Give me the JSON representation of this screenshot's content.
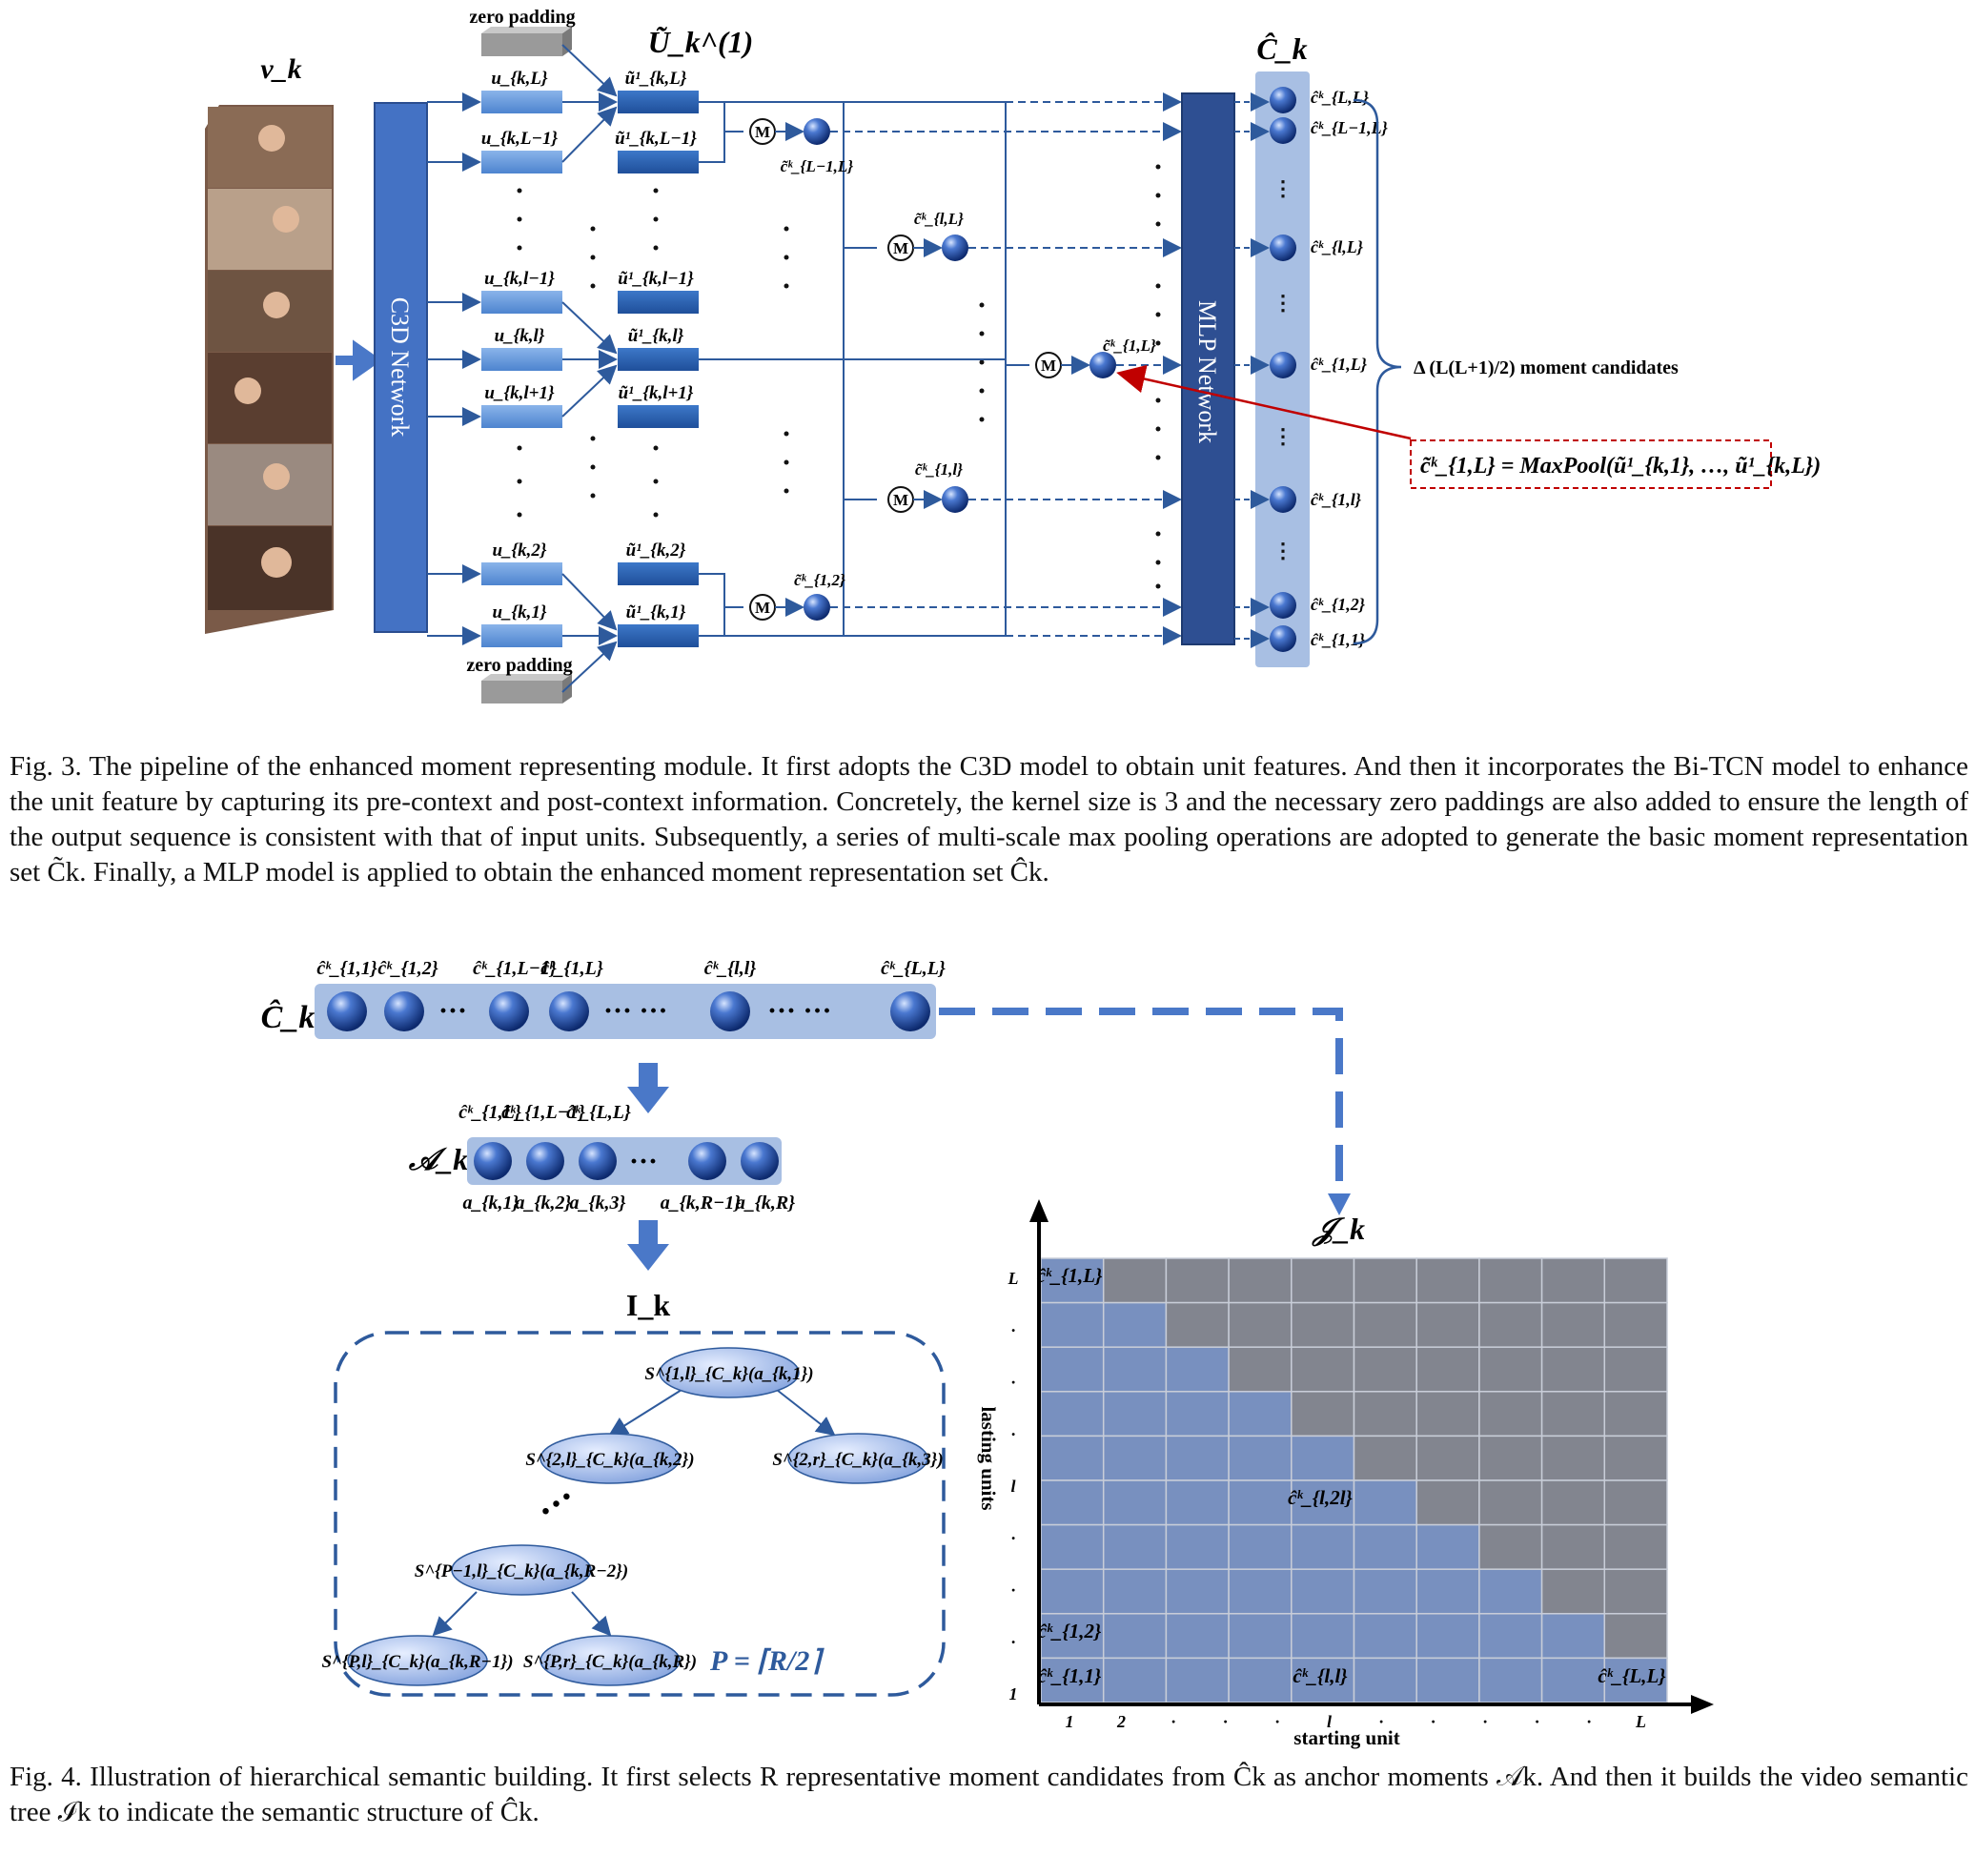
{
  "figure3": {
    "title_vk": "v_k",
    "title_u": "Ũ_k^(1)",
    "title_ck": "Ĉ_k",
    "zero_padding_top": "zero padding",
    "zero_padding_bottom": "zero padding",
    "c3d_label": "C3D Network",
    "mlp_label": "MLP Network",
    "unit_labels": [
      "u_{k,L}",
      "u_{k,L−1}",
      "u_{k,l−1}",
      "u_{k,l}",
      "u_{k,l+1}",
      "u_{k,2}",
      "u_{k,1}"
    ],
    "enh_labels": [
      "ũ¹_{k,L}",
      "ũ¹_{k,L−1}",
      "ũ¹_{k,l−1}",
      "ũ¹_{k,l}",
      "ũ¹_{k,l+1}",
      "ũ¹_{k,2}",
      "ũ¹_{k,1}"
    ],
    "pool_labels": [
      "c̃ᵏ_{L−1,L}",
      "c̃ᵏ_{l,L}",
      "c̃ᵏ_{1,l}",
      "c̃ᵏ_{1,2}",
      "c̃ᵏ_{1,L}"
    ],
    "m_symbol": "M",
    "output_labels": [
      "ĉᵏ_{L,L}",
      "ĉᵏ_{L−1,L}",
      "ĉᵏ_{l,L}",
      "ĉᵏ_{1,L}",
      "ĉᵏ_{1,l}",
      "ĉᵏ_{1,2}",
      "ĉᵏ_{1,1}"
    ],
    "brace_label": "Δ (L(L+1)/2) moment candidates",
    "maxpool_formula": "c̃ᵏ_{1,L} = MaxPool(ũ¹_{k,1}, …, ũ¹_{k,L})"
  },
  "caption3": "Fig. 3.   The pipeline of the enhanced moment representing module. It first adopts the C3D model to obtain unit features. And then it incorporates the Bi-TCN model to enhance the unit feature by capturing its pre-context and post-context information. Concretely, the kernel size is 3 and the necessary zero paddings are also added to ensure the length of the output sequence is consistent with that of input units. Subsequently, a series of multi-scale max pooling operations are adopted to generate the basic moment representation set C̃k. Finally, a MLP model is applied to obtain the enhanced moment representation set Ĉk.",
  "figure4": {
    "ck_label": "Ĉ_k",
    "top_labels": [
      "ĉᵏ_{1,1}",
      "ĉᵏ_{1,2}",
      "ĉᵏ_{1,L−1}",
      "ĉᵏ_{1,L}",
      "ĉᵏ_{l,l}",
      "ĉᵏ_{L,L}"
    ],
    "ak_label": "𝒜_k",
    "anchor_top_labels": [
      "ĉᵏ_{1,L}",
      "ĉᵏ_{1,L−1}",
      "ĉᵏ_{L,L}"
    ],
    "anchor_bottom_labels": [
      "a_{k,1}",
      "a_{k,2}",
      "a_{k,3}",
      "a_{k,R−1}",
      "a_{k,R}"
    ],
    "ik_label": "I_k",
    "tree_nodes": [
      "S^{1,l}_{C_k}(a_{k,1})",
      "S^{2,l}_{C_k}(a_{k,2})",
      "S^{2,r}_{C_k}(a_{k,3})",
      "S^{P−1,l}_{C_k}(a_{k,R−2})",
      "S^{P,l}_{C_k}(a_{k,R−1})",
      "S^{P,r}_{C_k}(a_{k,R})"
    ],
    "p_formula": "P = ⌈R/2⌉",
    "jk_label": "𝒥_k",
    "y_axis_title": "lasting units",
    "x_axis_title": "starting unit",
    "y_ticks": [
      "L",
      "·",
      "·",
      "·",
      "l",
      "·",
      "·",
      "·",
      "1"
    ],
    "x_ticks": [
      "1",
      "2",
      "·",
      "·",
      "·",
      "l",
      "·",
      "·",
      "·",
      "·",
      "·",
      "L"
    ],
    "grid_labels": [
      "ĉᵏ_{1,L}",
      "ĉᵏ_{l,2l}",
      "ĉᵏ_{1,2}",
      "ĉᵏ_{1,1}",
      "ĉᵏ_{l,l}",
      "ĉᵏ_{L,L}"
    ]
  },
  "caption4": "Fig. 4.   Illustration of hierarchical semantic building. It first selects R representative moment candidates from Ĉk as anchor moments 𝒜k. And then it builds the video semantic tree ℐk to indicate the semantic structure of Ĉk.",
  "colors": {
    "dark_blue": "#2e5a9c",
    "mid_blue": "#3f6fc0",
    "light_blue": "#6a9bd8",
    "band_blue": "#a8bfe3",
    "cell_blue": "#7890bf",
    "cell_gray": "#82858f",
    "red": "#c00000"
  }
}
